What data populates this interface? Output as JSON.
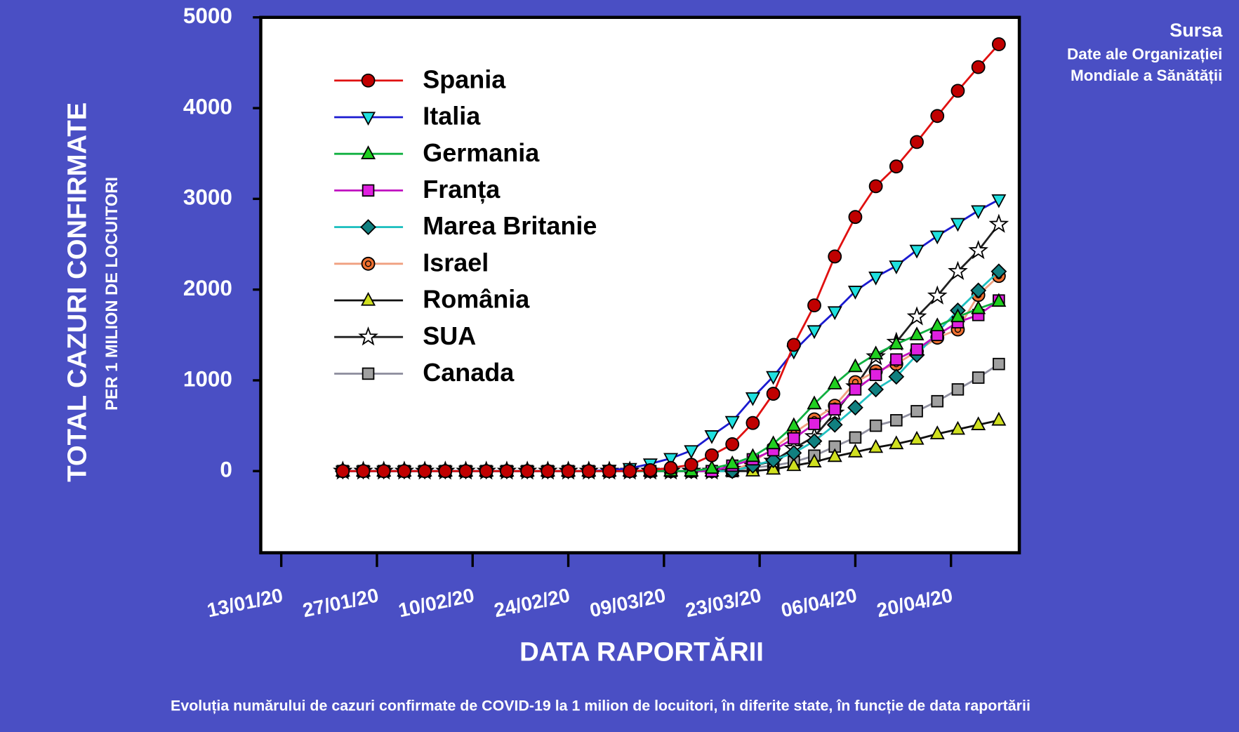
{
  "chart_data": {
    "type": "line",
    "y_label": "TOTAL CAZURI CONFIRMATE",
    "y_sublabel": "PER 1 MILION DE LOCUITORI",
    "x_label": "DATA RAPORTĂRII",
    "caption": "Evoluția numărului de cazuri confirmate de COVID-19 la 1 milion de locuitori, în diferite state, în funcție de data raportării",
    "source_title": "Sursa",
    "source_lines": [
      "Date ale Organizației",
      "Mondiale a Sănătății"
    ],
    "x": [
      "2020-01-22",
      "2020-01-25",
      "2020-01-28",
      "2020-01-31",
      "2020-02-03",
      "2020-02-06",
      "2020-02-09",
      "2020-02-12",
      "2020-02-15",
      "2020-02-18",
      "2020-02-21",
      "2020-02-24",
      "2020-02-27",
      "2020-03-01",
      "2020-03-04",
      "2020-03-07",
      "2020-03-10",
      "2020-03-13",
      "2020-03-16",
      "2020-03-19",
      "2020-03-22",
      "2020-03-25",
      "2020-03-28",
      "2020-03-31",
      "2020-04-03",
      "2020-04-06",
      "2020-04-09",
      "2020-04-12",
      "2020-04-15",
      "2020-04-18",
      "2020-04-21",
      "2020-04-24",
      "2020-04-27"
    ],
    "xlim": [
      "2020-01-10",
      "2020-04-30"
    ],
    "xticks": [
      {
        "value": "2020-01-13",
        "label": "13/01/20"
      },
      {
        "value": "2020-01-27",
        "label": "27/01/20"
      },
      {
        "value": "2020-02-10",
        "label": "10/02/20"
      },
      {
        "value": "2020-02-24",
        "label": "24/02/20"
      },
      {
        "value": "2020-03-09",
        "label": "09/03/20"
      },
      {
        "value": "2020-03-23",
        "label": "23/03/20"
      },
      {
        "value": "2020-04-06",
        "label": "06/04/20"
      },
      {
        "value": "2020-04-20",
        "label": "20/04/20"
      }
    ],
    "ylim": [
      -900,
      5000
    ],
    "yticks": [
      0,
      1000,
      2000,
      3000,
      4000,
      5000
    ],
    "legend": "upper left",
    "series": [
      {
        "name": "Spania",
        "color": "#e01010",
        "marker": "circle",
        "marker_color": "#c00000",
        "values": [
          0,
          0,
          0,
          0,
          0,
          0,
          0,
          0,
          0,
          0,
          0,
          0,
          0,
          0,
          0,
          10,
          35,
          70,
          174,
          296,
          530,
          852,
          1391,
          1826,
          2365,
          2800,
          3139,
          3357,
          3626,
          3913,
          4191,
          4452,
          4704
        ]
      },
      {
        "name": "Italia",
        "color": "#1a1ad0",
        "marker": "triangle-down",
        "marker_color": "#20e0e0",
        "values": [
          0,
          0,
          0,
          0,
          0,
          0,
          0,
          0,
          0,
          0,
          0,
          0,
          0,
          10,
          30,
          80,
          140,
          226,
          391,
          548,
          809,
          1043,
          1322,
          1548,
          1757,
          1983,
          2139,
          2261,
          2435,
          2591,
          2730,
          2870,
          2991
        ]
      },
      {
        "name": "Germania",
        "color": "#10b040",
        "marker": "triangle-up",
        "marker_color": "#20d020",
        "values": [
          0,
          0,
          0,
          0,
          0,
          0,
          0,
          0,
          0,
          0,
          0,
          0,
          0,
          0,
          0,
          0,
          0,
          0,
          30,
          80,
          160,
          300,
          500,
          740,
          960,
          1150,
          1290,
          1400,
          1500,
          1600,
          1700,
          1790,
          1870
        ]
      },
      {
        "name": "Franța",
        "color": "#c010c0",
        "marker": "square",
        "marker_color": "#e020e0",
        "values": [
          0,
          0,
          0,
          0,
          0,
          0,
          0,
          0,
          0,
          0,
          0,
          0,
          0,
          0,
          0,
          0,
          0,
          0,
          0,
          60,
          130,
          230,
          360,
          520,
          680,
          900,
          1060,
          1230,
          1340,
          1500,
          1640,
          1720,
          1880
        ]
      },
      {
        "name": "Marea Britanie",
        "color": "#20c0c0",
        "marker": "diamond",
        "marker_color": "#108080",
        "values": [
          0,
          0,
          0,
          0,
          0,
          0,
          0,
          0,
          0,
          0,
          0,
          0,
          0,
          0,
          0,
          0,
          0,
          0,
          0,
          0,
          60,
          120,
          200,
          330,
          510,
          700,
          900,
          1040,
          1280,
          1530,
          1770,
          1990,
          2200
        ]
      },
      {
        "name": "Israel",
        "color": "#f0a080",
        "marker": "dot-circle",
        "marker_color": "#f07030",
        "values": [
          0,
          0,
          0,
          0,
          0,
          0,
          0,
          0,
          0,
          0,
          0,
          0,
          0,
          0,
          0,
          0,
          0,
          0,
          0,
          0,
          100,
          250,
          420,
          570,
          720,
          980,
          1100,
          1180,
          1320,
          1470,
          1560,
          1940,
          2150
        ]
      },
      {
        "name": "România",
        "color": "#101010",
        "marker": "triangle-up",
        "marker_color": "#d0e020",
        "values": [
          0,
          0,
          0,
          0,
          0,
          0,
          0,
          0,
          0,
          0,
          0,
          0,
          0,
          0,
          0,
          0,
          0,
          0,
          0,
          0,
          0,
          20,
          60,
          100,
          160,
          210,
          260,
          300,
          350,
          410,
          460,
          510,
          560
        ]
      },
      {
        "name": "SUA",
        "color": "#202020",
        "marker": "star",
        "marker_color": "#ffffff",
        "values": [
          0,
          0,
          0,
          0,
          0,
          0,
          0,
          0,
          0,
          0,
          0,
          0,
          0,
          0,
          0,
          0,
          0,
          0,
          0,
          20,
          60,
          110,
          250,
          380,
          640,
          930,
          1260,
          1420,
          1700,
          1930,
          2200,
          2430,
          2720
        ]
      },
      {
        "name": "Canada",
        "color": "#9090a0",
        "marker": "square",
        "marker_color": "#a0a0a0",
        "values": [
          0,
          0,
          0,
          0,
          0,
          0,
          0,
          0,
          0,
          0,
          0,
          0,
          0,
          0,
          0,
          0,
          0,
          0,
          0,
          0,
          40,
          60,
          100,
          170,
          270,
          370,
          500,
          560,
          660,
          770,
          900,
          1030,
          1180
        ]
      }
    ]
  }
}
